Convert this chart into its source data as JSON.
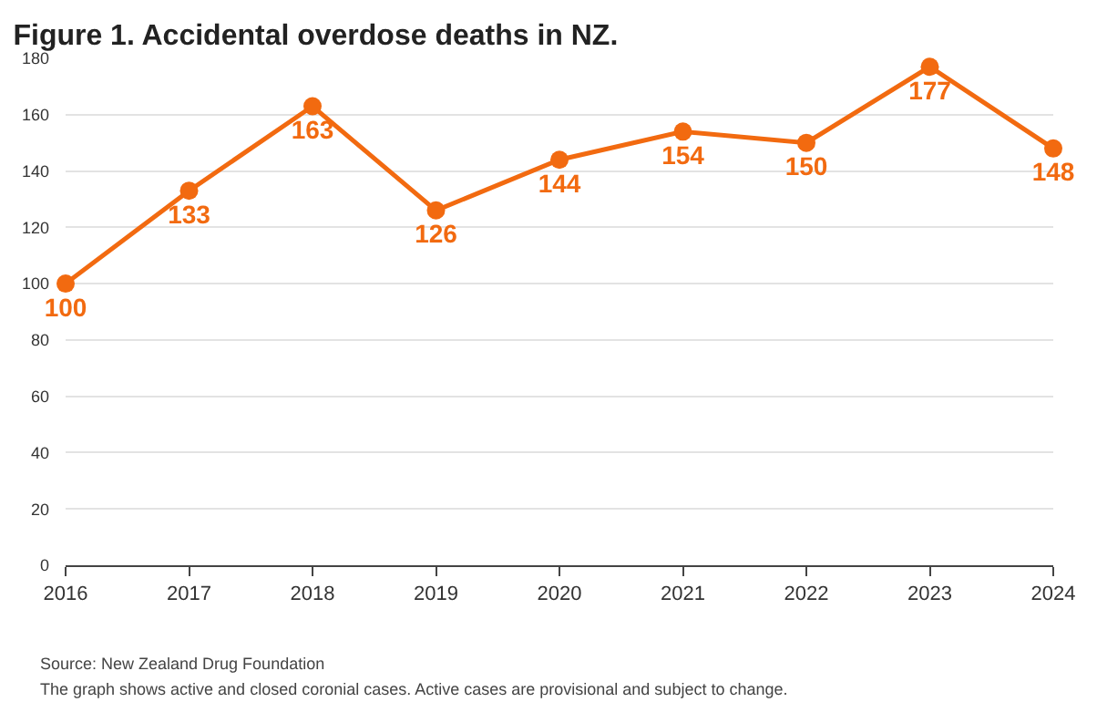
{
  "chart_data": {
    "type": "line",
    "title": "Figure 1. Accidental overdose deaths in NZ.",
    "x": [
      2016,
      2017,
      2018,
      2019,
      2020,
      2021,
      2022,
      2023,
      2024
    ],
    "series": [
      {
        "color": "#f26a10",
        "values": [
          100,
          133,
          163,
          126,
          144,
          154,
          150,
          177,
          148
        ]
      }
    ],
    "xlim": [
      2016,
      2024
    ],
    "xticks": [
      2016,
      2017,
      2018,
      2019,
      2020,
      2021,
      2022,
      2023,
      2024
    ],
    "ylim": [
      0,
      180
    ],
    "yticks": [
      0,
      20,
      40,
      60,
      80,
      100,
      120,
      140,
      160,
      180
    ],
    "grid": "y",
    "marker": "circle",
    "line_style": "solid",
    "data_labels": true,
    "legend": false,
    "annotations": [
      "Source: New Zealand Drug Foundation",
      "The graph shows active and closed coronial cases. Active cases are provisional and subject to change."
    ]
  }
}
